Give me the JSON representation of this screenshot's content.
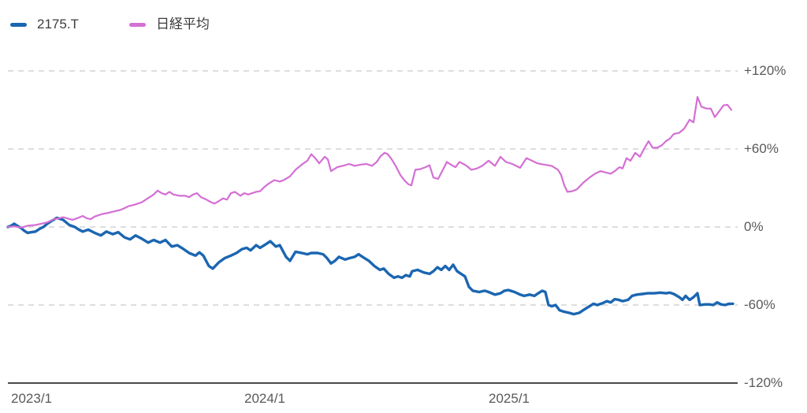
{
  "chart_data": {
    "type": "line",
    "title": "",
    "legend_position": "top-left",
    "grid": "horizontal-dashed",
    "x_axis": {
      "note": "time axis, weekly data from 2023/1 to late 2025; x stored as plot pixel, ~316px per year",
      "ticks": [
        {
          "label": "2023/1",
          "x": 14
        },
        {
          "label": "2024/1",
          "x": 336
        },
        {
          "label": "2025/1",
          "x": 646
        }
      ]
    },
    "y_axis": {
      "unit": "%",
      "range": [
        -120,
        120
      ],
      "ticks": [
        {
          "label": "+120%",
          "value": 120
        },
        {
          "label": "+60%",
          "value": 60
        },
        {
          "label": "0%",
          "value": 0
        },
        {
          "label": "-60%",
          "value": -60
        },
        {
          "label": "-120%",
          "value": -120
        }
      ]
    },
    "series": [
      {
        "name": "2175.T",
        "color": "#1b66b1",
        "width": 3.4,
        "points": [
          [
            10,
            0
          ],
          [
            14,
            1
          ],
          [
            18,
            2.5
          ],
          [
            23,
            0.5
          ],
          [
            27,
            -1
          ],
          [
            31,
            -3
          ],
          [
            35,
            -4.5
          ],
          [
            40,
            -4
          ],
          [
            45,
            -3.5
          ],
          [
            50,
            -1.5
          ],
          [
            55,
            0
          ],
          [
            60,
            2.5
          ],
          [
            65,
            4.5
          ],
          [
            72,
            7
          ],
          [
            80,
            5.5
          ],
          [
            88,
            1.5
          ],
          [
            95,
            0
          ],
          [
            100,
            -2
          ],
          [
            105,
            -3.5
          ],
          [
            112,
            -2
          ],
          [
            120,
            -4.5
          ],
          [
            128,
            -6.5
          ],
          [
            135,
            -3.5
          ],
          [
            143,
            -5.5
          ],
          [
            150,
            -4
          ],
          [
            158,
            -8
          ],
          [
            165,
            -9.5
          ],
          [
            172,
            -6.5
          ],
          [
            180,
            -9
          ],
          [
            188,
            -12
          ],
          [
            195,
            -10
          ],
          [
            203,
            -12
          ],
          [
            210,
            -10
          ],
          [
            218,
            -15
          ],
          [
            225,
            -14
          ],
          [
            233,
            -17
          ],
          [
            240,
            -20
          ],
          [
            248,
            -22
          ],
          [
            253,
            -19.5
          ],
          [
            258,
            -22
          ],
          [
            265,
            -30
          ],
          [
            270,
            -32
          ],
          [
            278,
            -27
          ],
          [
            285,
            -24
          ],
          [
            293,
            -22
          ],
          [
            300,
            -20
          ],
          [
            307,
            -17
          ],
          [
            313,
            -16
          ],
          [
            318,
            -18
          ],
          [
            325,
            -14
          ],
          [
            330,
            -16
          ],
          [
            338,
            -13
          ],
          [
            343,
            -11
          ],
          [
            350,
            -15
          ],
          [
            355,
            -14
          ],
          [
            363,
            -23
          ],
          [
            368,
            -26
          ],
          [
            375,
            -19
          ],
          [
            383,
            -20
          ],
          [
            390,
            -21
          ],
          [
            395,
            -20
          ],
          [
            403,
            -20
          ],
          [
            410,
            -21
          ],
          [
            415,
            -24
          ],
          [
            420,
            -28
          ],
          [
            425,
            -26
          ],
          [
            430,
            -23
          ],
          [
            438,
            -25
          ],
          [
            443,
            -24
          ],
          [
            450,
            -23
          ],
          [
            455,
            -21
          ],
          [
            460,
            -23
          ],
          [
            468,
            -26
          ],
          [
            475,
            -30
          ],
          [
            482,
            -33
          ],
          [
            487,
            -32
          ],
          [
            493,
            -36
          ],
          [
            500,
            -39
          ],
          [
            505,
            -38
          ],
          [
            510,
            -39
          ],
          [
            515,
            -37
          ],
          [
            520,
            -38
          ],
          [
            523,
            -34
          ],
          [
            530,
            -33
          ],
          [
            538,
            -35
          ],
          [
            545,
            -36
          ],
          [
            550,
            -34
          ],
          [
            555,
            -31
          ],
          [
            560,
            -33
          ],
          [
            565,
            -30
          ],
          [
            570,
            -33
          ],
          [
            575,
            -29
          ],
          [
            580,
            -34
          ],
          [
            585,
            -36
          ],
          [
            590,
            -38
          ],
          [
            595,
            -46
          ],
          [
            600,
            -49
          ],
          [
            608,
            -50
          ],
          [
            615,
            -49
          ],
          [
            620,
            -50
          ],
          [
            628,
            -52
          ],
          [
            635,
            -51
          ],
          [
            640,
            -49
          ],
          [
            645,
            -48.5
          ],
          [
            653,
            -50
          ],
          [
            660,
            -52
          ],
          [
            665,
            -53
          ],
          [
            672,
            -52
          ],
          [
            678,
            -53
          ],
          [
            683,
            -51
          ],
          [
            688,
            -49
          ],
          [
            692,
            -50
          ],
          [
            696,
            -60
          ],
          [
            700,
            -61
          ],
          [
            705,
            -60
          ],
          [
            710,
            -64
          ],
          [
            715,
            -65
          ],
          [
            722,
            -66
          ],
          [
            728,
            -67
          ],
          [
            735,
            -66
          ],
          [
            740,
            -64
          ],
          [
            748,
            -61
          ],
          [
            753,
            -59
          ],
          [
            758,
            -60
          ],
          [
            765,
            -58.5
          ],
          [
            770,
            -57
          ],
          [
            775,
            -58
          ],
          [
            780,
            -55.5
          ],
          [
            785,
            -56
          ],
          [
            790,
            -57
          ],
          [
            797,
            -56
          ],
          [
            802,
            -53
          ],
          [
            808,
            -52
          ],
          [
            815,
            -51.5
          ],
          [
            822,
            -51
          ],
          [
            830,
            -51
          ],
          [
            838,
            -50.5
          ],
          [
            845,
            -51
          ],
          [
            850,
            -50.5
          ],
          [
            855,
            -51.5
          ],
          [
            862,
            -54
          ],
          [
            866,
            -56
          ],
          [
            870,
            -53
          ],
          [
            875,
            -56
          ],
          [
            880,
            -54
          ],
          [
            885,
            -51
          ],
          [
            888,
            -60
          ],
          [
            895,
            -59.5
          ],
          [
            900,
            -59.5
          ],
          [
            905,
            -60
          ],
          [
            910,
            -58
          ],
          [
            915,
            -59.5
          ],
          [
            920,
            -60
          ],
          [
            925,
            -59
          ],
          [
            930,
            -59
          ]
        ]
      },
      {
        "name": "日経平均",
        "color": "#d46fd4",
        "width": 2.2,
        "points": [
          [
            10,
            0
          ],
          [
            18,
            0.5
          ],
          [
            27,
            -0.5
          ],
          [
            35,
            1
          ],
          [
            45,
            1.5
          ],
          [
            52,
            2.5
          ],
          [
            60,
            3.6
          ],
          [
            68,
            6
          ],
          [
            75,
            6.7
          ],
          [
            80,
            7.5
          ],
          [
            85,
            6.7
          ],
          [
            92,
            5.5
          ],
          [
            98,
            6.7
          ],
          [
            105,
            8.5
          ],
          [
            110,
            6.7
          ],
          [
            115,
            6
          ],
          [
            120,
            8
          ],
          [
            125,
            9
          ],
          [
            130,
            10
          ],
          [
            138,
            11
          ],
          [
            145,
            12
          ],
          [
            152,
            13
          ],
          [
            158,
            14.5
          ],
          [
            163,
            16
          ],
          [
            170,
            17
          ],
          [
            175,
            18
          ],
          [
            180,
            19
          ],
          [
            185,
            21
          ],
          [
            190,
            23
          ],
          [
            195,
            25
          ],
          [
            200,
            28
          ],
          [
            205,
            26
          ],
          [
            210,
            25
          ],
          [
            215,
            27
          ],
          [
            220,
            25
          ],
          [
            228,
            24
          ],
          [
            235,
            24
          ],
          [
            240,
            23
          ],
          [
            245,
            25
          ],
          [
            250,
            26
          ],
          [
            255,
            23
          ],
          [
            262,
            21
          ],
          [
            268,
            19
          ],
          [
            272,
            18
          ],
          [
            278,
            20
          ],
          [
            283,
            22
          ],
          [
            288,
            21
          ],
          [
            293,
            26
          ],
          [
            298,
            27
          ],
          [
            305,
            24
          ],
          [
            310,
            26
          ],
          [
            315,
            25
          ],
          [
            320,
            26
          ],
          [
            325,
            27
          ],
          [
            330,
            27.5
          ],
          [
            335,
            30.5
          ],
          [
            340,
            33
          ],
          [
            348,
            36
          ],
          [
            355,
            35
          ],
          [
            360,
            36
          ],
          [
            368,
            39
          ],
          [
            375,
            44
          ],
          [
            383,
            48
          ],
          [
            390,
            51
          ],
          [
            395,
            56
          ],
          [
            400,
            53
          ],
          [
            405,
            49
          ],
          [
            412,
            54
          ],
          [
            416,
            52
          ],
          [
            420,
            43
          ],
          [
            428,
            46
          ],
          [
            435,
            47
          ],
          [
            443,
            48.5
          ],
          [
            450,
            47
          ],
          [
            458,
            48
          ],
          [
            465,
            48.5
          ],
          [
            472,
            47
          ],
          [
            478,
            50
          ],
          [
            483,
            54.5
          ],
          [
            488,
            57
          ],
          [
            492,
            56
          ],
          [
            497,
            52
          ],
          [
            502,
            47
          ],
          [
            508,
            40
          ],
          [
            513,
            36
          ],
          [
            518,
            33
          ],
          [
            522,
            32
          ],
          [
            527,
            44
          ],
          [
            533,
            44.5
          ],
          [
            540,
            46
          ],
          [
            545,
            47.5
          ],
          [
            550,
            38
          ],
          [
            556,
            37
          ],
          [
            562,
            44
          ],
          [
            567,
            50
          ],
          [
            572,
            48
          ],
          [
            578,
            46
          ],
          [
            583,
            50
          ],
          [
            588,
            48.5
          ],
          [
            592,
            47
          ],
          [
            598,
            44
          ],
          [
            605,
            45
          ],
          [
            612,
            47
          ],
          [
            620,
            51
          ],
          [
            628,
            47
          ],
          [
            635,
            54
          ],
          [
            642,
            50
          ],
          [
            650,
            48.5
          ],
          [
            660,
            45.5
          ],
          [
            668,
            53
          ],
          [
            675,
            51
          ],
          [
            682,
            49
          ],
          [
            690,
            48
          ],
          [
            700,
            47
          ],
          [
            708,
            44
          ],
          [
            712,
            40
          ],
          [
            716,
            32
          ],
          [
            720,
            27
          ],
          [
            726,
            27.5
          ],
          [
            732,
            29
          ],
          [
            740,
            34
          ],
          [
            748,
            38
          ],
          [
            755,
            41
          ],
          [
            762,
            43
          ],
          [
            768,
            42
          ],
          [
            775,
            41
          ],
          [
            780,
            43
          ],
          [
            786,
            46
          ],
          [
            790,
            45
          ],
          [
            795,
            53
          ],
          [
            800,
            51
          ],
          [
            806,
            57
          ],
          [
            812,
            54
          ],
          [
            818,
            61
          ],
          [
            823,
            66
          ],
          [
            828,
            61
          ],
          [
            834,
            61
          ],
          [
            840,
            63
          ],
          [
            845,
            66
          ],
          [
            850,
            68
          ],
          [
            855,
            71.5
          ],
          [
            862,
            72.5
          ],
          [
            868,
            75.5
          ],
          [
            875,
            82.5
          ],
          [
            880,
            80.5
          ],
          [
            885,
            100
          ],
          [
            890,
            92.5
          ],
          [
            897,
            91
          ],
          [
            902,
            91
          ],
          [
            907,
            84.5
          ],
          [
            912,
            88.5
          ],
          [
            918,
            93.5
          ],
          [
            923,
            94
          ],
          [
            928,
            90
          ]
        ]
      }
    ],
    "style_colors": {
      "grid": "#d4d4d4",
      "axis_line": "#4a4a4a",
      "tick_text": "#595959",
      "legend_text": "#3c3c3c",
      "background": "#ffffff"
    }
  }
}
